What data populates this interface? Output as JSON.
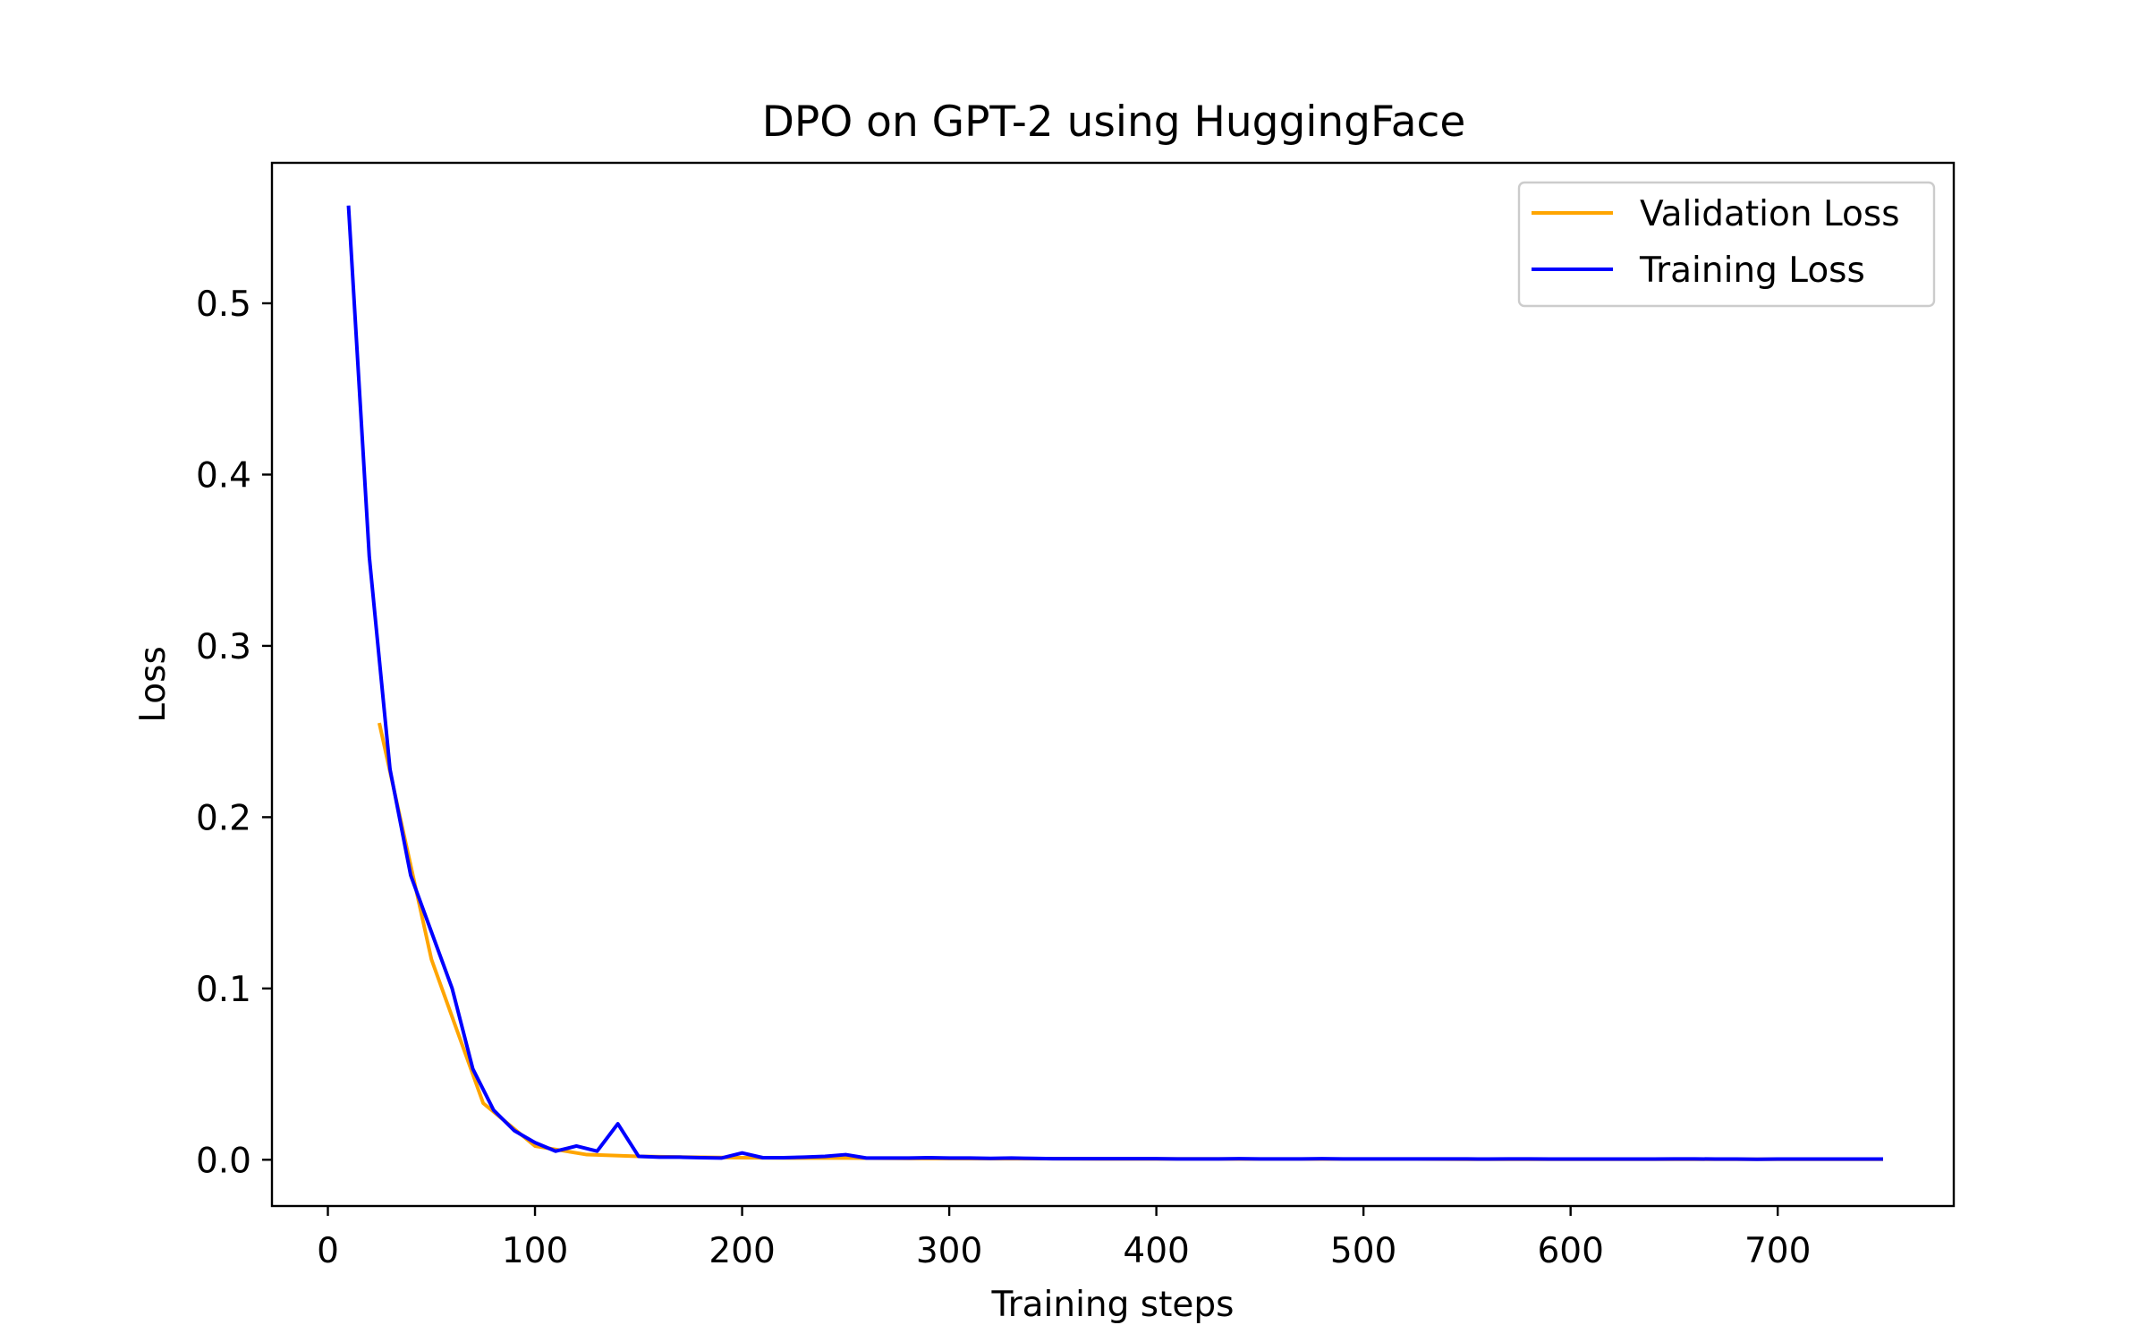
{
  "chart_data": {
    "type": "line",
    "title": "DPO on GPT-2 using HuggingFace",
    "xlabel": "Training steps",
    "ylabel": "Loss",
    "xlim": [
      -27,
      785
    ],
    "ylim": [
      -0.027,
      0.582
    ],
    "xticks": [
      0,
      100,
      200,
      300,
      400,
      500,
      600,
      700
    ],
    "xtick_labels": [
      "0",
      "100",
      "200",
      "300",
      "400",
      "500",
      "600",
      "700"
    ],
    "yticks": [
      0.0,
      0.1,
      0.2,
      0.3,
      0.4,
      0.5
    ],
    "ytick_labels": [
      "0.0",
      "0.1",
      "0.2",
      "0.3",
      "0.4",
      "0.5"
    ],
    "grid": false,
    "legend_position": "top-right",
    "series": [
      {
        "name": "Validation Loss",
        "color": "#ffa500",
        "x": [
          25,
          50,
          75,
          100,
          125,
          150,
          175,
          200,
          225,
          250,
          275,
          300,
          325,
          350,
          375,
          400,
          425,
          450,
          475,
          500,
          525,
          550,
          575,
          600,
          625,
          650,
          675,
          700,
          725,
          750
        ],
        "y": [
          0.254,
          0.117,
          0.033,
          0.008,
          0.003,
          0.002,
          0.0015,
          0.0012,
          0.001,
          0.001,
          0.0008,
          0.0007,
          0.0006,
          0.0006,
          0.0005,
          0.0005,
          0.0005,
          0.0004,
          0.0004,
          0.0004,
          0.0004,
          0.0003,
          0.0003,
          0.0003,
          0.0003,
          0.0003,
          0.0003,
          0.0003,
          0.0003,
          0.0003
        ]
      },
      {
        "name": "Training Loss",
        "color": "#0000ff",
        "x": [
          10,
          20,
          30,
          40,
          50,
          60,
          70,
          80,
          90,
          100,
          110,
          120,
          130,
          140,
          150,
          160,
          170,
          180,
          190,
          200,
          210,
          220,
          230,
          240,
          250,
          260,
          270,
          280,
          290,
          300,
          310,
          320,
          330,
          340,
          350,
          360,
          370,
          380,
          390,
          400,
          410,
          420,
          430,
          440,
          450,
          460,
          470,
          480,
          490,
          500,
          510,
          520,
          530,
          540,
          550,
          560,
          570,
          580,
          590,
          600,
          610,
          620,
          630,
          640,
          650,
          660,
          670,
          680,
          690,
          700,
          710,
          720,
          730,
          740,
          750
        ],
        "y": [
          0.556,
          0.352,
          0.228,
          0.166,
          0.133,
          0.1,
          0.053,
          0.029,
          0.017,
          0.01,
          0.005,
          0.008,
          0.005,
          0.021,
          0.002,
          0.0015,
          0.0015,
          0.0012,
          0.001,
          0.004,
          0.0012,
          0.0012,
          0.0015,
          0.002,
          0.003,
          0.001,
          0.001,
          0.001,
          0.0012,
          0.001,
          0.001,
          0.0008,
          0.001,
          0.0008,
          0.0006,
          0.0006,
          0.0006,
          0.0006,
          0.0006,
          0.0006,
          0.0005,
          0.0005,
          0.0005,
          0.0006,
          0.0005,
          0.0005,
          0.0005,
          0.0006,
          0.0005,
          0.0005,
          0.0005,
          0.0005,
          0.0005,
          0.0005,
          0.0005,
          0.0004,
          0.0005,
          0.0005,
          0.0004,
          0.0004,
          0.0004,
          0.0004,
          0.0004,
          0.0004,
          0.0005,
          0.0005,
          0.0004,
          0.0004,
          0.0003,
          0.0004,
          0.0004,
          0.0004,
          0.0004,
          0.0004,
          0.0004
        ]
      }
    ]
  }
}
